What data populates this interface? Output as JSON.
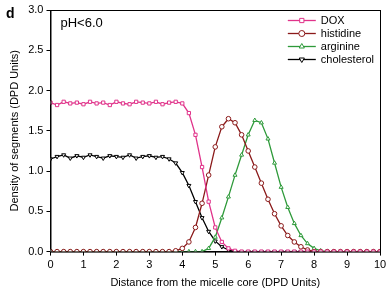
{
  "chart_data": {
    "type": "line",
    "annotations": [
      {
        "text": "d"
      },
      {
        "text": "pH<6.0"
      }
    ],
    "x_label": "Distance from the micelle core (DPD Units)",
    "y_label": "Density of segments (DPD Units)",
    "x": [
      0,
      0.2,
      0.4,
      0.6,
      0.8,
      1,
      1.2,
      1.4,
      1.6,
      1.8,
      2,
      2.2,
      2.4,
      2.6,
      2.8,
      3,
      3.2,
      3.4,
      3.6,
      3.8,
      4,
      4.2,
      4.4,
      4.6,
      4.8,
      5,
      5.2,
      5.4,
      5.6,
      5.8,
      6,
      6.2,
      6.4,
      6.6,
      6.8,
      7,
      7.2,
      7.4,
      7.6,
      7.8,
      8,
      8.2,
      8.4,
      8.6,
      8.8,
      9,
      9.2,
      9.4,
      9.6,
      9.8,
      10
    ],
    "series": [
      {
        "name": "DOX",
        "color": "#e0338a",
        "marker": "square",
        "values": [
          1.85,
          1.82,
          1.86,
          1.84,
          1.85,
          1.83,
          1.86,
          1.84,
          1.85,
          1.82,
          1.86,
          1.84,
          1.83,
          1.86,
          1.85,
          1.84,
          1.86,
          1.83,
          1.85,
          1.86,
          1.84,
          1.72,
          1.45,
          1.05,
          0.62,
          0.3,
          0.12,
          0.04,
          0.01,
          0,
          0,
          0,
          0,
          0,
          0,
          0,
          0,
          0,
          0,
          0,
          0,
          0,
          0,
          0,
          0,
          0,
          0,
          0,
          0,
          0,
          0
        ]
      },
      {
        "name": "histidine",
        "color": "#8b1a1a",
        "marker": "circle",
        "values": [
          0,
          0,
          0,
          0,
          0,
          0,
          0,
          0,
          0,
          0,
          0,
          0,
          0,
          0,
          0,
          0,
          0,
          0,
          0,
          0.01,
          0.04,
          0.12,
          0.3,
          0.6,
          0.95,
          1.3,
          1.55,
          1.65,
          1.6,
          1.45,
          1.25,
          1.05,
          0.85,
          0.65,
          0.47,
          0.32,
          0.2,
          0.12,
          0.06,
          0.02,
          0,
          0,
          0,
          0,
          0,
          0,
          0,
          0,
          0,
          0,
          0
        ]
      },
      {
        "name": "arginine",
        "color": "#2e9a3a",
        "marker": "triangle",
        "values": [
          0,
          0,
          0,
          0,
          0,
          0,
          0,
          0,
          0,
          0,
          0,
          0,
          0,
          0,
          0,
          0,
          0,
          0,
          0,
          0,
          0,
          0,
          0,
          0,
          0.04,
          0.18,
          0.42,
          0.68,
          0.95,
          1.2,
          1.45,
          1.63,
          1.6,
          1.4,
          1.1,
          0.8,
          0.55,
          0.35,
          0.2,
          0.1,
          0.04,
          0.01,
          0,
          0,
          0,
          0,
          0,
          0,
          0,
          0,
          0
        ]
      },
      {
        "name": "cholesterol",
        "color": "#000000",
        "marker": "triangle-down",
        "values": [
          1.15,
          1.18,
          1.2,
          1.16,
          1.19,
          1.17,
          1.2,
          1.18,
          1.16,
          1.19,
          1.18,
          1.17,
          1.2,
          1.16,
          1.18,
          1.19,
          1.17,
          1.18,
          1.15,
          1.1,
          0.98,
          0.82,
          0.62,
          0.42,
          0.25,
          0.13,
          0.06,
          0.02,
          0,
          0,
          0,
          0,
          0,
          0,
          0,
          0,
          0,
          0,
          0,
          0,
          0,
          0,
          0,
          0,
          0,
          0,
          0,
          0,
          0,
          0,
          0
        ]
      }
    ],
    "xlim": [
      0,
      10
    ],
    "xticks": [
      0,
      1,
      2,
      3,
      4,
      5,
      6,
      7,
      8,
      9,
      10
    ],
    "ylim": [
      0,
      3.0
    ],
    "yticks": [
      {
        "value": 0,
        "label": "0.0"
      },
      {
        "value": 0.5,
        "label": "0.5"
      },
      {
        "value": 1.0,
        "label": "1.0"
      },
      {
        "value": 1.5,
        "label": "1.5"
      },
      {
        "value": 2.0,
        "label": "2.0"
      },
      {
        "value": 2.5,
        "label": "2.5"
      },
      {
        "value": 3.0,
        "label": "3.0"
      }
    ],
    "legend": "upper right",
    "grid": false
  }
}
